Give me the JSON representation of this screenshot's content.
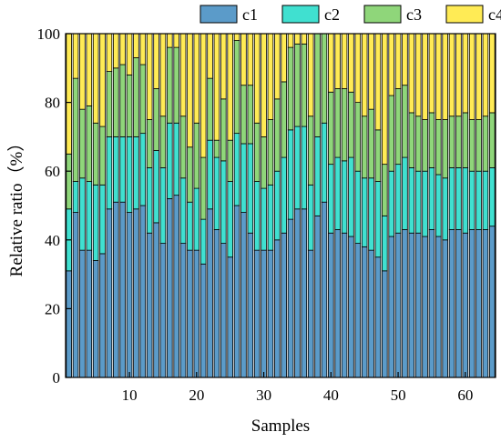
{
  "chart_data": {
    "type": "bar",
    "stacked": true,
    "xlabel": "Samples",
    "ylabel": "Relative ratio（%）",
    "ylim": [
      0,
      100
    ],
    "xlim": [
      0.5,
      64.5
    ],
    "xticks": [
      10,
      20,
      30,
      40,
      50,
      60
    ],
    "yticks": [
      0,
      20,
      40,
      60,
      80,
      100
    ],
    "legend_position": "top-right",
    "grid": false,
    "x": [
      1,
      2,
      3,
      4,
      5,
      6,
      7,
      8,
      9,
      10,
      11,
      12,
      13,
      14,
      15,
      16,
      17,
      18,
      19,
      20,
      21,
      22,
      23,
      24,
      25,
      26,
      27,
      28,
      29,
      30,
      31,
      32,
      33,
      34,
      35,
      36,
      37,
      38,
      39,
      40,
      41,
      42,
      43,
      44,
      45,
      46,
      47,
      48,
      49,
      50,
      51,
      52,
      53,
      54,
      55,
      56,
      57,
      58,
      59,
      60,
      61,
      62,
      63,
      64
    ],
    "series": [
      {
        "name": "c1",
        "color": "#5b9bc9",
        "values": [
          31,
          48,
          37,
          37,
          34,
          36,
          49,
          51,
          51,
          48,
          49,
          50,
          42,
          45,
          39,
          52,
          53,
          39,
          37,
          37,
          33,
          49,
          43,
          39,
          35,
          50,
          48,
          42,
          37,
          37,
          37,
          40,
          42,
          46,
          49,
          49,
          37,
          47,
          51,
          42,
          43,
          42,
          41,
          39,
          38,
          37,
          35,
          31,
          41,
          42,
          43,
          42,
          42,
          41,
          43,
          41,
          40,
          43,
          43,
          42,
          43,
          43,
          43,
          44
        ]
      },
      {
        "name": "c2",
        "color": "#40e0d0",
        "values": [
          18,
          9,
          21,
          20,
          22,
          20,
          21,
          19,
          19,
          22,
          21,
          21,
          19,
          21,
          22,
          22,
          21,
          19,
          14,
          18,
          13,
          20,
          21,
          24,
          22,
          21,
          20,
          26,
          20,
          18,
          19,
          20,
          22,
          26,
          24,
          24,
          19,
          23,
          23,
          20,
          21,
          21,
          23,
          21,
          20,
          21,
          22,
          16,
          19,
          20,
          21,
          19,
          18,
          19,
          18,
          18,
          18,
          18,
          18,
          19,
          17,
          17,
          17,
          17
        ]
      },
      {
        "name": "c3",
        "color": "#8fd67a",
        "values": [
          16,
          30,
          20,
          22,
          18,
          17,
          19,
          20,
          21,
          18,
          23,
          20,
          14,
          18,
          15,
          22,
          22,
          18,
          16,
          19,
          18,
          18,
          5,
          18,
          12,
          27,
          17,
          17,
          17,
          15,
          19,
          21,
          22,
          24,
          24,
          24,
          20,
          30,
          26,
          21,
          20,
          21,
          19,
          20,
          18,
          20,
          15,
          15,
          22,
          22,
          21,
          16,
          16,
          15,
          16,
          16,
          17,
          15,
          15,
          16,
          15,
          15,
          16,
          16
        ]
      },
      {
        "name": "c4",
        "color": "#ffeb55",
        "values": [
          35,
          13,
          22,
          21,
          26,
          27,
          11,
          10,
          9,
          12,
          7,
          9,
          25,
          16,
          24,
          4,
          4,
          24,
          33,
          26,
          36,
          13,
          31,
          19,
          31,
          2,
          15,
          15,
          26,
          30,
          25,
          19,
          14,
          4,
          3,
          3,
          24,
          0,
          0,
          17,
          16,
          16,
          17,
          20,
          24,
          22,
          28,
          38,
          18,
          16,
          15,
          23,
          24,
          25,
          23,
          25,
          25,
          24,
          24,
          23,
          25,
          25,
          24,
          23
        ]
      }
    ]
  }
}
